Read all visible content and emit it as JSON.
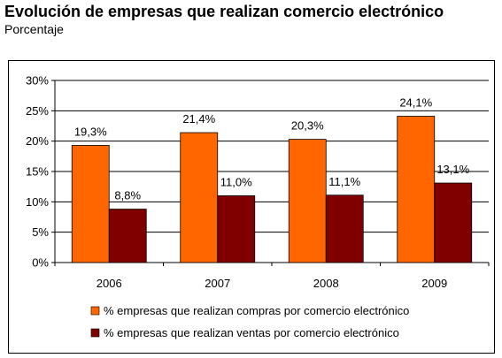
{
  "header": {
    "title": "Evolución de empresas que realizan comercio electrónico",
    "subtitle": "Porcentaje"
  },
  "chart_data": {
    "type": "bar",
    "title": "Evolución de empresas que realizan comercio electrónico",
    "subtitle": "Porcentaje",
    "categories": [
      "2006",
      "2007",
      "2008",
      "2009"
    ],
    "series": [
      {
        "name": "% empresas que realizan compras por comercio electrónico",
        "values": [
          19.3,
          21.4,
          20.3,
          24.1
        ],
        "labels": [
          "19,3%",
          "21,4%",
          "20,3%",
          "24,1%"
        ],
        "color": "#FF6600"
      },
      {
        "name": "% empresas que realizan ventas por comercio electrónico",
        "values": [
          8.8,
          11.0,
          11.1,
          13.1
        ],
        "labels": [
          "8,8%",
          "11,0%",
          "11,1%",
          "13,1%"
        ],
        "color": "#800000"
      }
    ],
    "ylim": [
      0,
      30
    ],
    "yticks": [
      "0%",
      "5%",
      "10%",
      "15%",
      "20%",
      "25%",
      "30%"
    ],
    "grid": true,
    "legend": "bottom"
  }
}
